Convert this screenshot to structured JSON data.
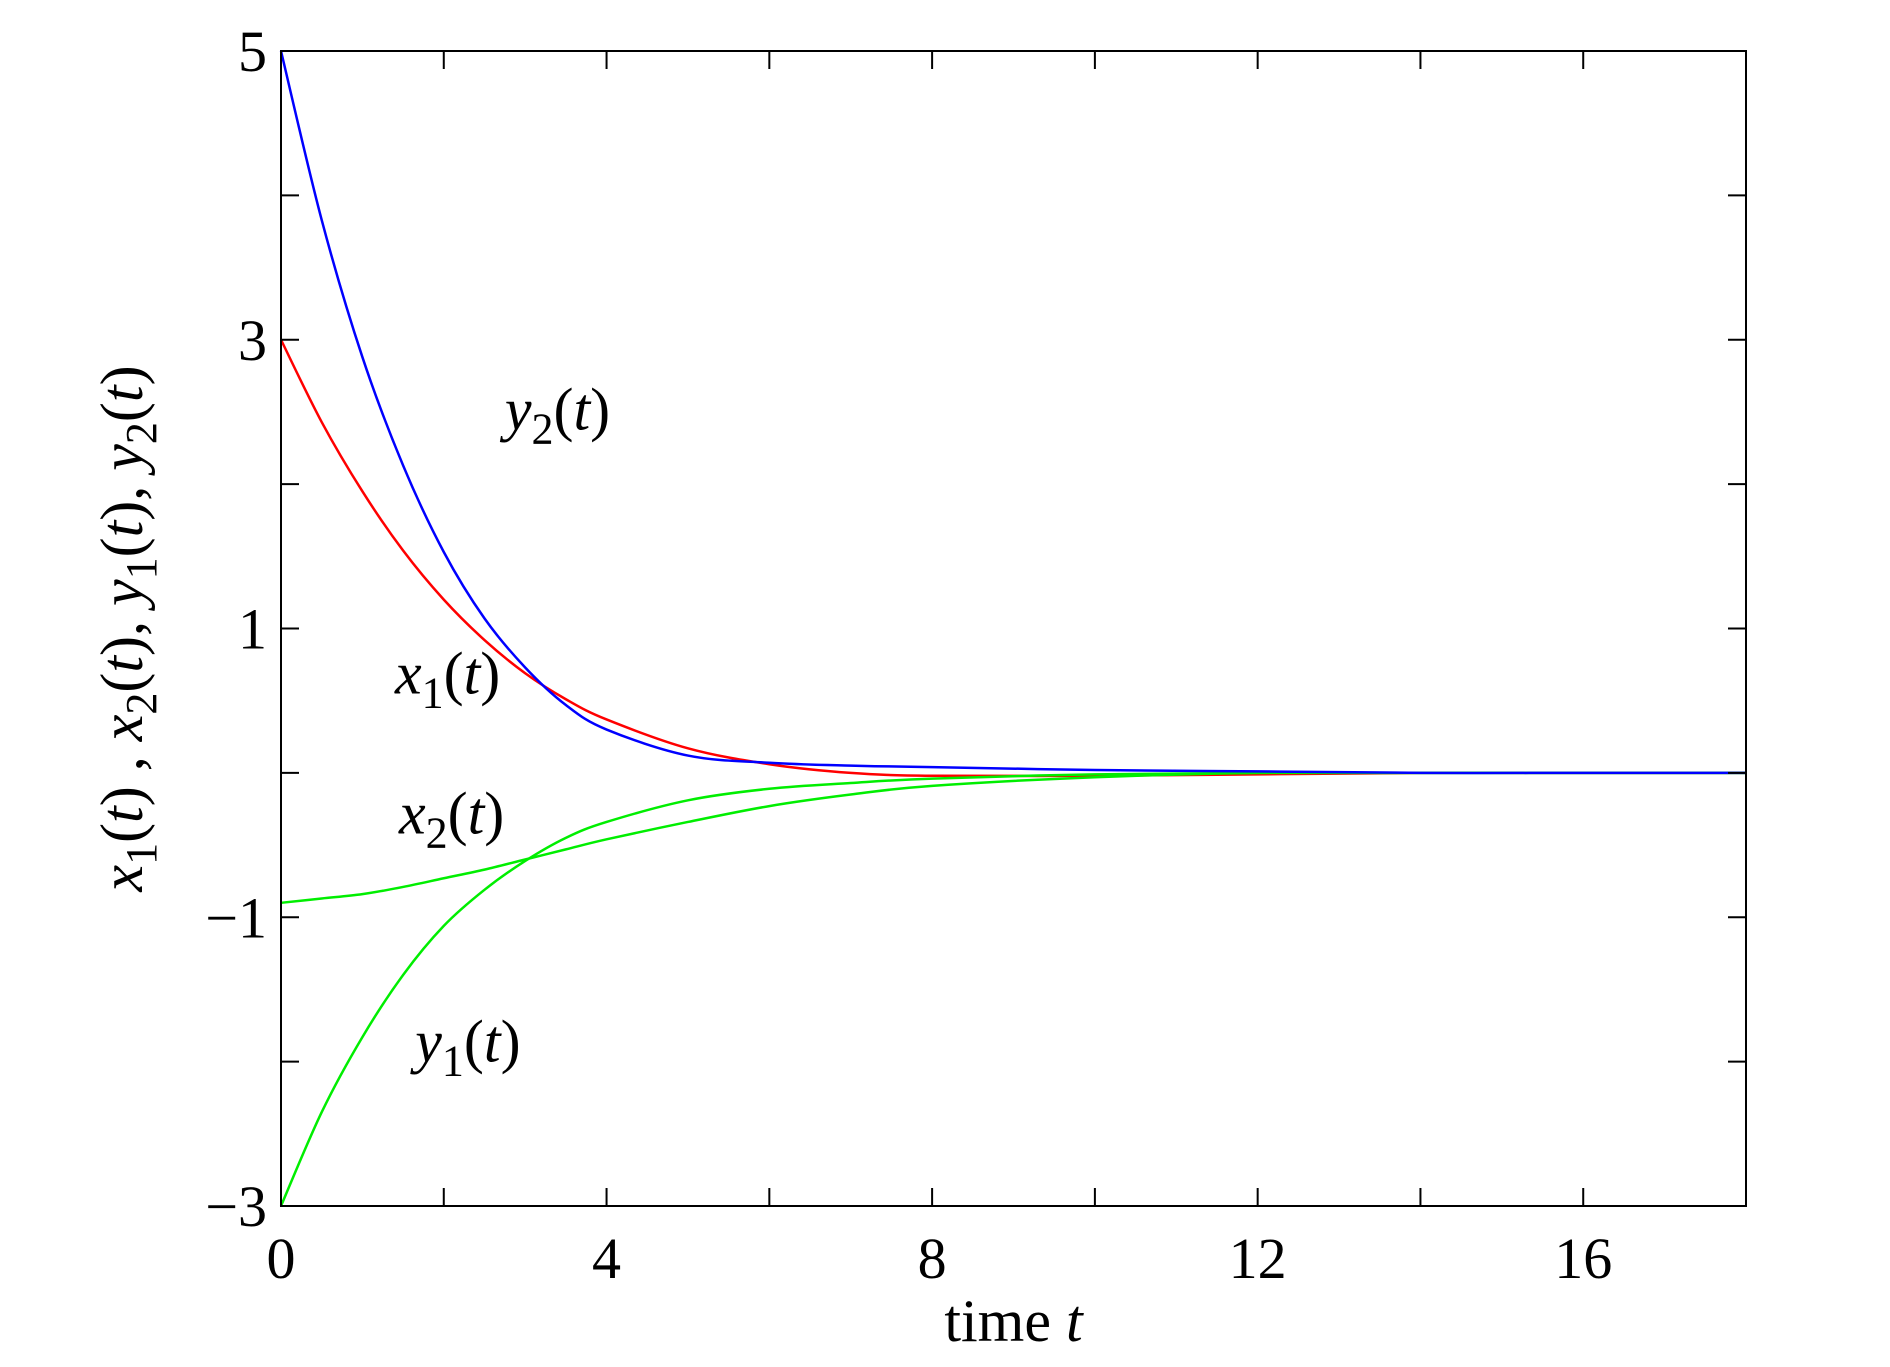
{
  "chart_data": {
    "type": "line",
    "title": "",
    "xlabel": {
      "text": "time ",
      "var": "t"
    },
    "ylabel": {
      "parts": [
        {
          "v": "x",
          "s": "1",
          "a": "(",
          "t": "t",
          "b": ")"
        },
        {
          "sep": " , "
        },
        {
          "v": "x",
          "s": "2",
          "a": "(",
          "t": "t",
          "b": ")"
        },
        {
          "sep": ", "
        },
        {
          "v": "y",
          "s": "1",
          "a": "(",
          "t": "t",
          "b": ")"
        },
        {
          "sep": ", "
        },
        {
          "v": "y",
          "s": "2",
          "a": "(",
          "t": "t",
          "b": ")"
        }
      ]
    },
    "xlim": [
      0,
      18
    ],
    "ylim": [
      -3,
      5
    ],
    "xticks": [
      0,
      4,
      8,
      12,
      16
    ],
    "xticks_minor": [
      2,
      6,
      10,
      14
    ],
    "yticks": [
      -3,
      -1,
      1,
      3,
      5
    ],
    "yticks_minor": [
      -2,
      0,
      2,
      4
    ],
    "xtick_labels": [
      "0",
      "4",
      "8",
      "12",
      "16"
    ],
    "ytick_labels": [
      "−3",
      "−1",
      "1",
      "3",
      "5"
    ],
    "grid": false,
    "legend": "none",
    "series": [
      {
        "id": "x1",
        "color": "#ff0000",
        "label": {
          "v": "x",
          "s": "1",
          "t": "t"
        },
        "x": [
          0,
          0.5,
          1,
          1.5,
          2,
          2.5,
          3,
          3.5,
          4,
          5,
          6,
          7,
          8,
          10,
          12,
          14,
          16,
          18
        ],
        "y": [
          3.0,
          2.43,
          1.95,
          1.54,
          1.2,
          0.92,
          0.69,
          0.51,
          0.37,
          0.17,
          0.06,
          0.0,
          -0.02,
          -0.02,
          -0.01,
          0.0,
          0.0,
          0.0
        ]
      },
      {
        "id": "x2",
        "color": "#00ee00",
        "label": {
          "v": "x",
          "s": "2",
          "t": "t"
        },
        "x": [
          0,
          0.5,
          1,
          1.5,
          2,
          2.5,
          3,
          3.5,
          4,
          5,
          6,
          7,
          8,
          10,
          12,
          14,
          16,
          18
        ],
        "y": [
          -0.9,
          -0.87,
          -0.84,
          -0.79,
          -0.73,
          -0.67,
          -0.6,
          -0.53,
          -0.46,
          -0.34,
          -0.23,
          -0.15,
          -0.09,
          -0.03,
          0.0,
          0.0,
          0.0,
          0.0
        ]
      },
      {
        "id": "y1",
        "color": "#00ee00",
        "label": {
          "v": "y",
          "s": "1",
          "t": "t"
        },
        "x": [
          0,
          0.5,
          1,
          1.5,
          2,
          2.5,
          3,
          3.5,
          4,
          5,
          6,
          7,
          8,
          10,
          12,
          14,
          16,
          18
        ],
        "y": [
          -3.0,
          -2.35,
          -1.83,
          -1.4,
          -1.06,
          -0.81,
          -0.61,
          -0.45,
          -0.34,
          -0.19,
          -0.11,
          -0.07,
          -0.04,
          -0.01,
          0.0,
          0.0,
          0.0,
          0.0
        ]
      },
      {
        "id": "y2",
        "color": "#0000ff",
        "label": {
          "v": "y",
          "s": "2",
          "t": "t"
        },
        "x": [
          0,
          0.5,
          1,
          1.5,
          2,
          2.5,
          3,
          3.5,
          4,
          5,
          6,
          7,
          8,
          10,
          12,
          14,
          16,
          18
        ],
        "y": [
          5.0,
          3.83,
          2.88,
          2.13,
          1.53,
          1.07,
          0.73,
          0.47,
          0.3,
          0.12,
          0.07,
          0.05,
          0.04,
          0.02,
          0.01,
          0.0,
          0.0,
          0.0
        ]
      }
    ],
    "annotations": [
      {
        "series": "y2",
        "at": [
          2.75,
          2.38
        ]
      },
      {
        "series": "x1",
        "at": [
          1.4,
          0.55
        ]
      },
      {
        "series": "x2",
        "at": [
          1.45,
          -0.42
        ]
      },
      {
        "series": "y1",
        "at": [
          1.65,
          -2.0
        ]
      }
    ]
  }
}
